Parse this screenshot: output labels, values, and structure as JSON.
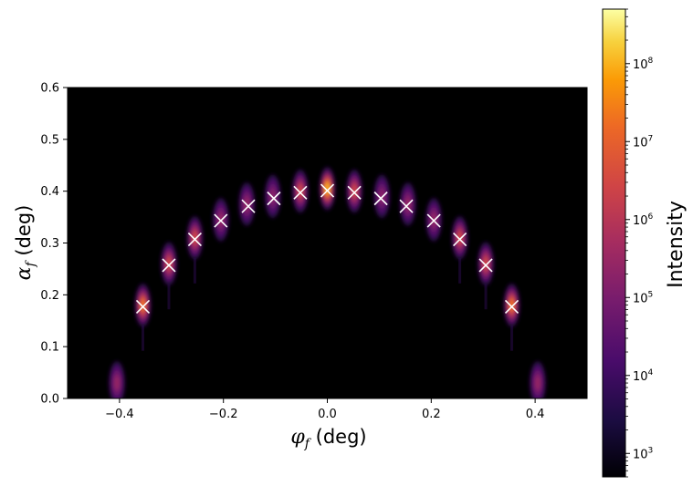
{
  "chart_data": {
    "type": "heatmap",
    "title": "",
    "xlabel_symbol": "φ",
    "xlabel_sub": "f",
    "xlabel_unit": " (deg)",
    "ylabel_symbol": "α",
    "ylabel_sub": "f",
    "ylabel_unit": " (deg)",
    "xlim": [
      -0.5,
      0.5
    ],
    "ylim": [
      0.0,
      0.6
    ],
    "x_ticks": [
      -0.4,
      -0.2,
      0.0,
      0.2,
      0.4
    ],
    "x_tick_labels": [
      "−0.4",
      "−0.2",
      "0.0",
      "0.2",
      "0.4"
    ],
    "y_ticks": [
      0.0,
      0.1,
      0.2,
      0.3,
      0.4,
      0.5,
      0.6
    ],
    "y_tick_labels": [
      "0.0",
      "0.1",
      "0.2",
      "0.3",
      "0.4",
      "0.5",
      "0.6"
    ],
    "grid": false,
    "colormap": "inferno",
    "colorbar": {
      "label": "Intensity",
      "scale": "log",
      "range": [
        500,
        500000000
      ],
      "major_ticks": [
        {
          "value": 1000,
          "base": "10",
          "exp": "3"
        },
        {
          "value": 10000,
          "base": "10",
          "exp": "4"
        },
        {
          "value": 100000,
          "base": "10",
          "exp": "5"
        },
        {
          "value": 1000000,
          "base": "10",
          "exp": "6"
        },
        {
          "value": 10000000,
          "base": "10",
          "exp": "7"
        },
        {
          "value": 100000000,
          "base": "10",
          "exp": "8"
        }
      ]
    },
    "peaks": [
      {
        "x": -0.405,
        "y": 0.03,
        "intensity": 300000
      },
      {
        "x": -0.355,
        "y": 0.18,
        "intensity": 20000000
      },
      {
        "x": -0.305,
        "y": 0.26,
        "intensity": 3000000
      },
      {
        "x": -0.255,
        "y": 0.31,
        "intensity": 3000000
      },
      {
        "x": -0.205,
        "y": 0.345,
        "intensity": 300000
      },
      {
        "x": -0.155,
        "y": 0.375,
        "intensity": 300000
      },
      {
        "x": -0.105,
        "y": 0.39,
        "intensity": 200000
      },
      {
        "x": -0.052,
        "y": 0.4,
        "intensity": 3000000
      },
      {
        "x": 0.0,
        "y": 0.405,
        "intensity": 100000000
      },
      {
        "x": 0.052,
        "y": 0.4,
        "intensity": 3000000
      },
      {
        "x": 0.105,
        "y": 0.39,
        "intensity": 200000
      },
      {
        "x": 0.155,
        "y": 0.375,
        "intensity": 300000
      },
      {
        "x": 0.205,
        "y": 0.345,
        "intensity": 300000
      },
      {
        "x": 0.255,
        "y": 0.31,
        "intensity": 3000000
      },
      {
        "x": 0.305,
        "y": 0.26,
        "intensity": 3000000
      },
      {
        "x": 0.355,
        "y": 0.18,
        "intensity": 20000000
      },
      {
        "x": 0.405,
        "y": 0.03,
        "intensity": 300000
      }
    ],
    "markers": {
      "symbol": "x",
      "color": "#ffffff",
      "points": [
        {
          "x": -0.355,
          "y": 0.177
        },
        {
          "x": -0.305,
          "y": 0.257
        },
        {
          "x": -0.255,
          "y": 0.307
        },
        {
          "x": -0.205,
          "y": 0.343
        },
        {
          "x": -0.152,
          "y": 0.371
        },
        {
          "x": -0.103,
          "y": 0.386
        },
        {
          "x": -0.052,
          "y": 0.397
        },
        {
          "x": 0.0,
          "y": 0.401
        },
        {
          "x": 0.052,
          "y": 0.397
        },
        {
          "x": 0.103,
          "y": 0.386
        },
        {
          "x": 0.152,
          "y": 0.371
        },
        {
          "x": 0.205,
          "y": 0.343
        },
        {
          "x": 0.255,
          "y": 0.307
        },
        {
          "x": 0.305,
          "y": 0.257
        },
        {
          "x": 0.355,
          "y": 0.177
        }
      ]
    }
  }
}
